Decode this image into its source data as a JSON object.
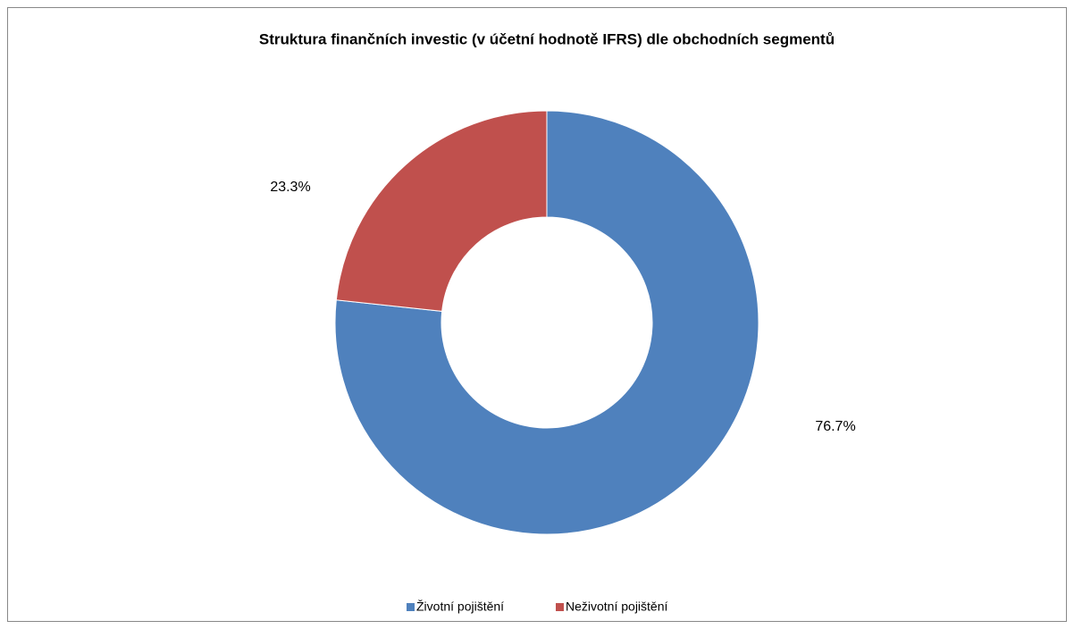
{
  "chart_data": {
    "type": "donut",
    "title": "Struktura finančních investic (v účetní hodnotě IFRS) dle obchodních segmentů",
    "categories": [
      "Životní pojištění",
      "Neživotní pojištění"
    ],
    "values": [
      76.7,
      23.3
    ],
    "value_labels": [
      "76.7%",
      "23.3%"
    ],
    "colors": [
      "#4f81bd",
      "#c0504d"
    ],
    "legend": "bottom"
  }
}
